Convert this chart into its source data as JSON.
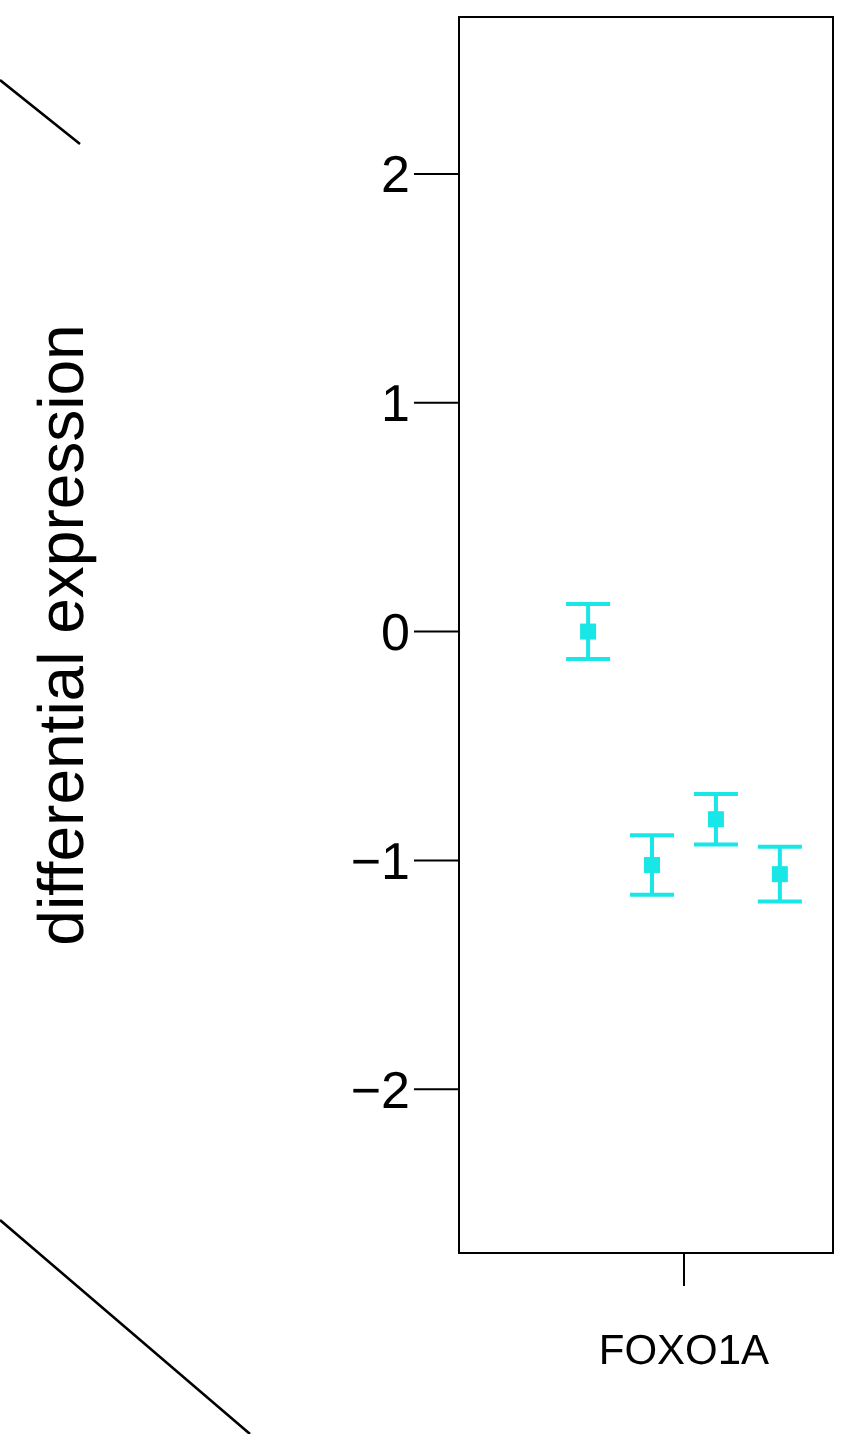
{
  "chart_data": {
    "type": "scatter",
    "ylabel": "differential expression",
    "categories": [
      "FOXO1A"
    ],
    "ylim": [
      -2.72,
      2.69
    ],
    "yticks": [
      -2,
      -1,
      0,
      1,
      2
    ],
    "marker": "square",
    "series": [
      {
        "color": "#19e6e6",
        "values": [
          0.0
        ],
        "errors": [
          0.12
        ]
      },
      {
        "color": "#19e6e6",
        "values": [
          -1.02
        ],
        "errors": [
          0.13
        ]
      },
      {
        "color": "#19e6e6",
        "values": [
          -0.82
        ],
        "errors": [
          0.11
        ]
      },
      {
        "color": "#19e6e6",
        "values": [
          -1.06
        ],
        "errors": [
          0.12
        ]
      }
    ]
  }
}
